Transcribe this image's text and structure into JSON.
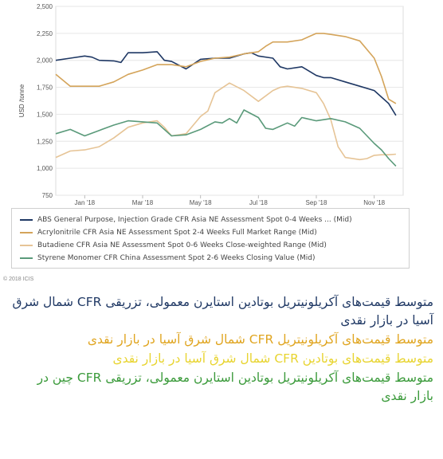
{
  "chart_data": {
    "type": "line",
    "title": "",
    "xlabel": "",
    "ylabel": "USD /tonne",
    "ylim": [
      750,
      2500
    ],
    "yticks": [
      "750",
      "1,000",
      "1,250",
      "1,500",
      "1,750",
      "2,000",
      "2,250",
      "2,500"
    ],
    "ytick_values": [
      750,
      1000,
      1250,
      1500,
      1750,
      2000,
      2250,
      2500
    ],
    "xticks": [
      "Jan '18",
      "Mar '18",
      "May '18",
      "Jul '18",
      "Sep '18",
      "Nov '18"
    ],
    "xtick_positions": [
      4,
      12,
      20,
      28,
      36,
      44
    ],
    "x_range": [
      0,
      48
    ],
    "grid": "horizontal",
    "legend_position": "bottom",
    "series": [
      {
        "name": "ABS General Purpose, Injection Grade CFR Asia NE Assessment Spot 0-4 Weeks ... (Mid)",
        "color": "#1f3864",
        "x": [
          0,
          2,
          4,
          5,
          6,
          8,
          9,
          10,
          12,
          14,
          15,
          16,
          18,
          20,
          22,
          24,
          26,
          27,
          28,
          30,
          31,
          32,
          34,
          36,
          37,
          38,
          40,
          42,
          44,
          46,
          47
        ],
        "values": [
          2000,
          2020,
          2040,
          2030,
          2000,
          1995,
          1980,
          2070,
          2070,
          2080,
          2000,
          1990,
          1920,
          2010,
          2020,
          2020,
          2060,
          2070,
          2040,
          2020,
          1940,
          1920,
          1940,
          1860,
          1840,
          1840,
          1800,
          1760,
          1720,
          1600,
          1490
        ]
      },
      {
        "name": "Acrylonitrile CFR Asia NE Assessment Spot 2-4 Weeks Full Market Range (Mid)",
        "color": "#d4a45a",
        "x": [
          0,
          2,
          4,
          6,
          8,
          10,
          12,
          14,
          16,
          18,
          20,
          22,
          24,
          26,
          28,
          29,
          30,
          32,
          34,
          35,
          36,
          37,
          38,
          40,
          42,
          44,
          45,
          46,
          47
        ],
        "values": [
          1870,
          1760,
          1760,
          1760,
          1800,
          1870,
          1910,
          1960,
          1960,
          1940,
          1990,
          2020,
          2030,
          2060,
          2080,
          2130,
          2170,
          2170,
          2190,
          2220,
          2250,
          2250,
          2240,
          2220,
          2180,
          2020,
          1850,
          1640,
          1600
        ]
      },
      {
        "name": "Butadiene CFR Asia NE Assessment Spot 0-6 Weeks Close-weighted Range (Mid)",
        "color": "#e6c496",
        "x": [
          0,
          2,
          4,
          6,
          8,
          10,
          12,
          14,
          15,
          16,
          18,
          19,
          20,
          21,
          22,
          24,
          26,
          28,
          30,
          31,
          32,
          34,
          36,
          37,
          38,
          39,
          40,
          42,
          43,
          44,
          45,
          46,
          47
        ],
        "values": [
          1100,
          1160,
          1170,
          1200,
          1280,
          1380,
          1420,
          1440,
          1380,
          1300,
          1320,
          1400,
          1480,
          1530,
          1700,
          1790,
          1720,
          1620,
          1720,
          1750,
          1760,
          1740,
          1700,
          1600,
          1450,
          1200,
          1100,
          1080,
          1090,
          1120,
          1125,
          1125,
          1130
        ]
      },
      {
        "name": "Styrene Monomer CFR China Assessment Spot 2-6 Weeks Closing Value (Mid)",
        "color": "#5a9a7a",
        "x": [
          0,
          2,
          3,
          4,
          6,
          8,
          10,
          12,
          14,
          16,
          18,
          20,
          22,
          23,
          24,
          25,
          26,
          28,
          29,
          30,
          32,
          33,
          34,
          36,
          38,
          40,
          42,
          44,
          45,
          46,
          47
        ],
        "values": [
          1320,
          1360,
          1330,
          1300,
          1350,
          1400,
          1440,
          1430,
          1420,
          1300,
          1310,
          1360,
          1430,
          1420,
          1460,
          1420,
          1540,
          1470,
          1370,
          1360,
          1420,
          1390,
          1470,
          1440,
          1460,
          1430,
          1370,
          1230,
          1170,
          1090,
          1020
        ]
      }
    ]
  },
  "copyright": "© 2018 ICIS",
  "notes": [
    {
      "text": "متوسط قیمت‌های آکریلونیتریل بوتادین استایرن معمولی، تزریقی CFR شمال شرق آسیا در بازار نقدی",
      "color": "#1f3864"
    },
    {
      "text": "متوسط قیمت‌های آکریلونیتریل CFR شمال شرق آسیا در بازار نقدی",
      "color": "#e0a520"
    },
    {
      "text": "متوسط قیمت‌های بوتادین CFR شمال شرق آسیا در بازار نقدی",
      "color": "#e8d430"
    },
    {
      "text": "متوسط قیمت‌های آکریلونیتریل بوتادین استایرن معمولی، تزریقی CFR چین در بازار نقدی",
      "color": "#3a9a3a"
    }
  ]
}
